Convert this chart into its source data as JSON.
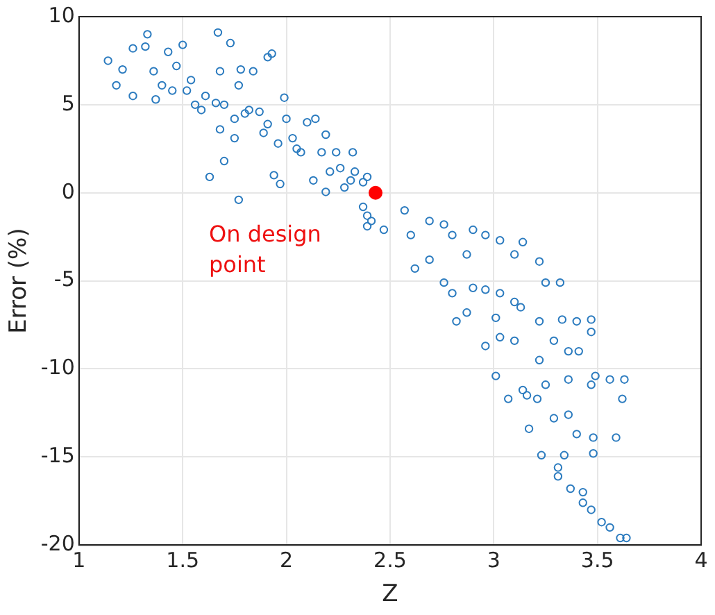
{
  "chart_data": {
    "type": "scatter",
    "xlabel": "Z",
    "ylabel": "Error (%)",
    "xlim": [
      1,
      4
    ],
    "xticks": [
      1,
      1.5,
      2,
      2.5,
      3,
      3.5,
      4
    ],
    "ylim": [
      -20,
      10
    ],
    "yticks": [
      -20,
      -15,
      -10,
      -5,
      0,
      5,
      10
    ],
    "grid": true,
    "marker": "circle",
    "legend": false,
    "annotations": [
      {
        "text": "On design point",
        "x": 2.43,
        "y": 0
      }
    ],
    "series": [
      {
        "color": "#2b7bbf",
        "x": [
          1.14,
          1.18,
          1.21,
          1.26,
          1.33,
          1.32,
          1.26,
          1.36,
          1.37,
          1.43,
          1.47,
          1.5,
          1.45,
          1.54,
          1.56,
          1.61,
          1.67,
          1.73,
          1.68,
          1.7,
          1.77,
          1.78,
          1.84,
          1.8,
          1.68,
          1.91,
          1.93,
          1.99,
          1.87,
          1.91,
          1.75,
          1.7,
          1.63,
          1.77,
          1.94,
          1.97,
          2.03,
          2.1,
          2.14,
          2.19,
          2.07,
          2.13,
          2.24,
          2.26,
          2.32,
          2.33,
          2.28,
          2.19,
          2.37,
          2.37,
          2.41,
          2.47,
          2.39,
          1.4,
          1.52,
          1.59,
          1.66,
          1.75,
          1.82,
          1.89,
          1.96,
          2,
          2.05,
          2.17,
          2.21,
          2.31,
          2.39,
          2.39,
          2.57,
          2.6,
          2.69,
          2.76,
          2.8,
          2.9,
          2.96,
          3.03,
          3.14,
          3.22,
          3.1,
          2.87,
          2.69,
          2.62,
          2.76,
          2.8,
          2.9,
          2.96,
          3.03,
          3.1,
          3.25,
          3.32,
          2.82,
          2.87,
          3.01,
          3.13,
          3.22,
          3.33,
          3.4,
          3.47,
          3.47,
          2.96,
          3.03,
          3.1,
          3.22,
          3.29,
          3.36,
          3.41,
          3.01,
          3.07,
          3.14,
          3.21,
          3.25,
          3.36,
          3.47,
          3.56,
          3.63,
          3.62,
          3.17,
          3.29,
          3.36,
          3.4,
          3.48,
          3.59,
          3.23,
          3.34,
          3.48,
          3.31,
          3.31,
          3.37,
          3.43,
          3.43,
          3.47,
          3.52,
          3.56,
          3.61,
          3.64,
          3.49,
          3.16
        ],
        "values": [
          7.5,
          6.1,
          7,
          5.5,
          9,
          8.3,
          8.2,
          6.9,
          5.3,
          8,
          7.2,
          8.4,
          5.8,
          6.4,
          5,
          5.5,
          9.1,
          8.5,
          6.9,
          5,
          6.1,
          7,
          6.9,
          4.5,
          3.6,
          7.7,
          7.9,
          5.4,
          4.6,
          3.9,
          3.1,
          1.8,
          0.9,
          -0.4,
          1,
          0.5,
          3.1,
          4,
          4.2,
          3.3,
          2.3,
          0.7,
          2.3,
          1.4,
          2.3,
          1.2,
          0.3,
          0.05,
          0.6,
          -0.8,
          -1.6,
          -2.1,
          -1.9,
          6.1,
          5.8,
          4.7,
          5.1,
          4.2,
          4.7,
          3.4,
          2.8,
          4.2,
          2.5,
          2.3,
          1.2,
          0.7,
          0.9,
          -1.3,
          -1,
          -2.4,
          -1.6,
          -1.8,
          -2.4,
          -2.1,
          -2.4,
          -2.7,
          -2.8,
          -3.9,
          -3.5,
          -3.5,
          -3.8,
          -4.3,
          -5.1,
          -5.7,
          -5.4,
          -5.5,
          -5.7,
          -6.2,
          -5.1,
          -5.1,
          -7.3,
          -6.8,
          -7.1,
          -6.5,
          -7.3,
          -7.2,
          -7.3,
          -7.2,
          -7.9,
          -8.7,
          -8.2,
          -8.4,
          -9.5,
          -8.4,
          -9,
          -9,
          -10.4,
          -11.7,
          -11.2,
          -11.7,
          -10.9,
          -10.6,
          -10.9,
          -10.6,
          -10.6,
          -11.7,
          -13.4,
          -12.8,
          -12.6,
          -13.7,
          -13.9,
          -13.9,
          -14.9,
          -14.9,
          -14.8,
          -15.6,
          -16.1,
          -16.8,
          -17,
          -17.6,
          -18,
          -18.7,
          -19,
          -19.6,
          -19.6,
          -10.4,
          -11.5
        ]
      },
      {
        "color": "#ff0000",
        "x": [
          2.43
        ],
        "values": [
          0
        ]
      }
    ]
  }
}
